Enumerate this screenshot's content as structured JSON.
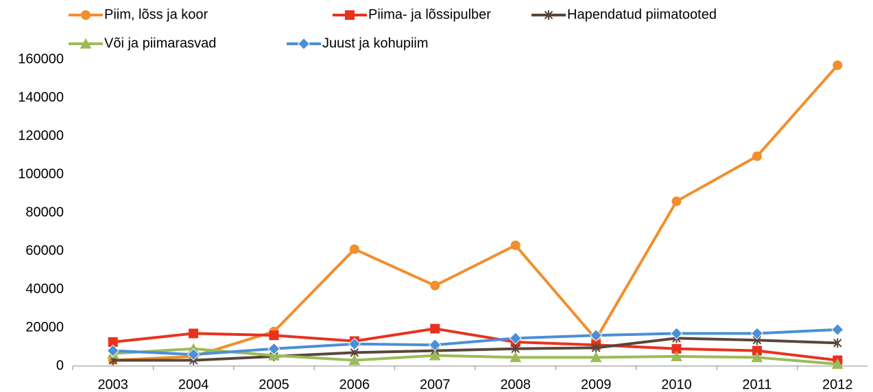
{
  "chart_data": {
    "type": "line",
    "categories": [
      "2003",
      "2004",
      "2005",
      "2006",
      "2007",
      "2008",
      "2009",
      "2010",
      "2011",
      "2012"
    ],
    "series": [
      {
        "name": "Piim, lõss ja koor",
        "color": "#f28e2b",
        "marker": "circle",
        "values": [
          3000,
          5000,
          18000,
          61000,
          42000,
          63000,
          14000,
          86000,
          109500,
          157000
        ]
      },
      {
        "name": "Piima- ja lõssipulber",
        "color": "#e8321e",
        "marker": "square",
        "values": [
          12500,
          17000,
          16000,
          13000,
          19500,
          12500,
          11000,
          9000,
          8000,
          3000
        ]
      },
      {
        "name": "Hapendatud piimatooted",
        "color": "#59463a",
        "marker": "star",
        "values": [
          3000,
          3000,
          5000,
          7000,
          8000,
          9000,
          9500,
          14500,
          13500,
          12000
        ]
      },
      {
        "name": "Või ja piimarasvad",
        "color": "#9bbb59",
        "marker": "triangle",
        "values": [
          6500,
          9000,
          5500,
          3000,
          5500,
          4500,
          4500,
          5000,
          4500,
          1000
        ]
      },
      {
        "name": "Juust ja kohupiim",
        "color": "#4a8fd8",
        "marker": "diamond",
        "values": [
          8000,
          6000,
          9000,
          11500,
          11000,
          14500,
          16000,
          17000,
          17000,
          19000
        ]
      }
    ],
    "ylim": [
      0,
      160000
    ],
    "yticks": [
      0,
      20000,
      40000,
      60000,
      80000,
      100000,
      120000,
      140000,
      160000
    ],
    "grid": false
  }
}
